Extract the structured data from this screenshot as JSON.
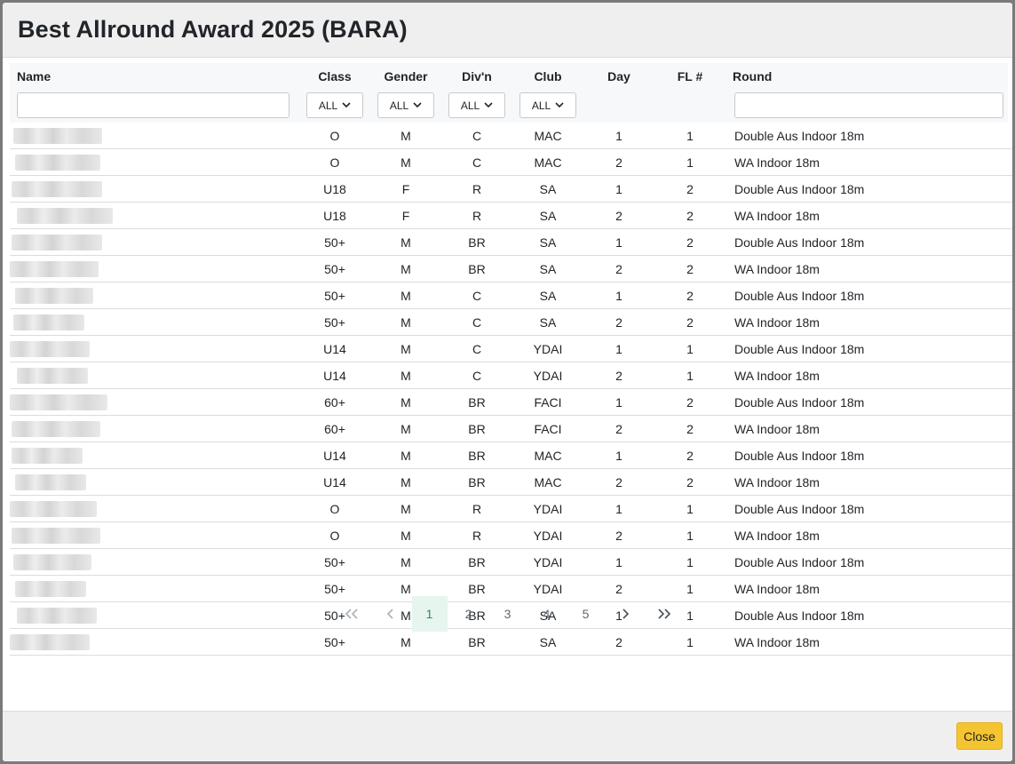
{
  "modal": {
    "title": "Best Allround Award 2025 (BARA)"
  },
  "table": {
    "headers": {
      "name": "Name",
      "class": "Class",
      "gender": "Gender",
      "division": "Div'n",
      "club": "Club",
      "day": "Day",
      "fl": "FL #",
      "round": "Round"
    },
    "filters": {
      "class": "ALL",
      "gender": "ALL",
      "division": "ALL",
      "club": "ALL",
      "name_value": "",
      "round_value": ""
    },
    "rows": [
      {
        "class": "O",
        "gender": "M",
        "division": "C",
        "club": "MAC",
        "day": "1",
        "fl": "1",
        "round": "Double Aus Indoor 18m"
      },
      {
        "class": "O",
        "gender": "M",
        "division": "C",
        "club": "MAC",
        "day": "2",
        "fl": "1",
        "round": "WA Indoor 18m"
      },
      {
        "class": "U18",
        "gender": "F",
        "division": "R",
        "club": "SA",
        "day": "1",
        "fl": "2",
        "round": "Double Aus Indoor 18m"
      },
      {
        "class": "U18",
        "gender": "F",
        "division": "R",
        "club": "SA",
        "day": "2",
        "fl": "2",
        "round": "WA Indoor 18m"
      },
      {
        "class": "50+",
        "gender": "M",
        "division": "BR",
        "club": "SA",
        "day": "1",
        "fl": "2",
        "round": "Double Aus Indoor 18m"
      },
      {
        "class": "50+",
        "gender": "M",
        "division": "BR",
        "club": "SA",
        "day": "2",
        "fl": "2",
        "round": "WA Indoor 18m"
      },
      {
        "class": "50+",
        "gender": "M",
        "division": "C",
        "club": "SA",
        "day": "1",
        "fl": "2",
        "round": "Double Aus Indoor 18m"
      },
      {
        "class": "50+",
        "gender": "M",
        "division": "C",
        "club": "SA",
        "day": "2",
        "fl": "2",
        "round": "WA Indoor 18m"
      },
      {
        "class": "U14",
        "gender": "M",
        "division": "C",
        "club": "YDAI",
        "day": "1",
        "fl": "1",
        "round": "Double Aus Indoor 18m"
      },
      {
        "class": "U14",
        "gender": "M",
        "division": "C",
        "club": "YDAI",
        "day": "2",
        "fl": "1",
        "round": "WA Indoor 18m"
      },
      {
        "class": "60+",
        "gender": "M",
        "division": "BR",
        "club": "FACI",
        "day": "1",
        "fl": "2",
        "round": "Double Aus Indoor 18m"
      },
      {
        "class": "60+",
        "gender": "M",
        "division": "BR",
        "club": "FACI",
        "day": "2",
        "fl": "2",
        "round": "WA Indoor 18m"
      },
      {
        "class": "U14",
        "gender": "M",
        "division": "BR",
        "club": "MAC",
        "day": "1",
        "fl": "2",
        "round": "Double Aus Indoor 18m"
      },
      {
        "class": "U14",
        "gender": "M",
        "division": "BR",
        "club": "MAC",
        "day": "2",
        "fl": "2",
        "round": "WA Indoor 18m"
      },
      {
        "class": "O",
        "gender": "M",
        "division": "R",
        "club": "YDAI",
        "day": "1",
        "fl": "1",
        "round": "Double Aus Indoor 18m"
      },
      {
        "class": "O",
        "gender": "M",
        "division": "R",
        "club": "YDAI",
        "day": "2",
        "fl": "1",
        "round": "WA Indoor 18m"
      },
      {
        "class": "50+",
        "gender": "M",
        "division": "BR",
        "club": "YDAI",
        "day": "1",
        "fl": "1",
        "round": "Double Aus Indoor 18m"
      },
      {
        "class": "50+",
        "gender": "M",
        "division": "BR",
        "club": "YDAI",
        "day": "2",
        "fl": "1",
        "round": "WA Indoor 18m"
      },
      {
        "class": "50+",
        "gender": "M",
        "division": "BR",
        "club": "SA",
        "day": "1",
        "fl": "1",
        "round": "Double Aus Indoor 18m"
      },
      {
        "class": "50+",
        "gender": "M",
        "division": "BR",
        "club": "SA",
        "day": "2",
        "fl": "1",
        "round": "WA Indoor 18m"
      }
    ]
  },
  "pagination": {
    "pages": [
      "1",
      "2",
      "3",
      "4",
      "5"
    ],
    "current": "1",
    "first_icon": "double-chevron-left-icon",
    "prev_icon": "chevron-left-icon",
    "next_icon": "chevron-right-icon",
    "last_icon": "double-chevron-right-icon"
  },
  "footer": {
    "close_label": "Close"
  },
  "colors": {
    "close_button": "#f5c431",
    "active_page_bg": "#e7f5ef",
    "active_page_text": "#2d8a63"
  }
}
